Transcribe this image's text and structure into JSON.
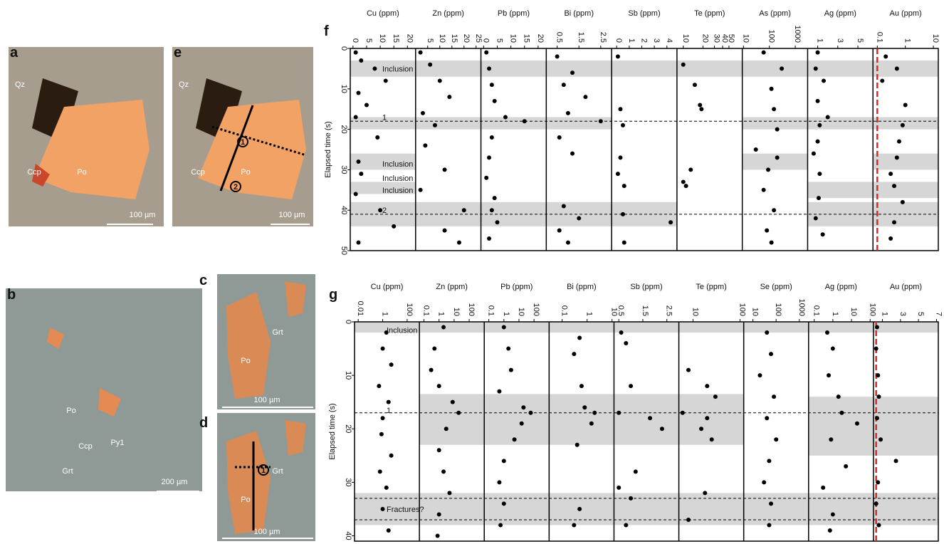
{
  "photos": [
    {
      "label": "a",
      "minerals": [
        "Qz",
        "Ccp",
        "Po"
      ],
      "scale_bar": "100 µm"
    },
    {
      "label": "e",
      "minerals": [
        "Qz",
        "Ccp",
        "Po"
      ],
      "scale_bar": "100 µm",
      "spots": [
        "1",
        "2"
      ]
    },
    {
      "label": "b",
      "minerals": [
        "Po",
        "Ccp",
        "Py1",
        "Grt"
      ],
      "scale_bar": "200 µm"
    },
    {
      "label": "c",
      "minerals": [
        "Grt",
        "Po"
      ],
      "scale_bar": "100 µm"
    },
    {
      "label": "d",
      "minerals": [
        "Grt",
        "Po"
      ],
      "scale_bar": "100 µm",
      "spots": [
        "1"
      ]
    }
  ],
  "chart_data": [
    {
      "type": "strip",
      "label": "f",
      "ylabel": "Elapsed time (s)",
      "ylim": [
        0,
        50
      ],
      "yticks": [
        0,
        10,
        20,
        30,
        40,
        50
      ],
      "au_line": 0.1,
      "bands": [
        {
          "from": 3,
          "to": 7,
          "tracks": [
            0,
            8
          ]
        },
        {
          "from": 17,
          "to": 20,
          "tracks": [
            0,
            3
          ]
        },
        {
          "from": 17,
          "to": 20,
          "tracks": [
            6,
            8
          ]
        },
        {
          "from": 26,
          "to": 30,
          "tracks": [
            0,
            0
          ]
        },
        {
          "from": 26,
          "to": 30,
          "tracks": [
            6,
            6
          ]
        },
        {
          "from": 26,
          "to": 30,
          "tracks": [
            8,
            8
          ]
        },
        {
          "from": 33,
          "to": 36,
          "tracks": [
            0,
            0
          ]
        },
        {
          "from": 33,
          "to": 37,
          "tracks": [
            7,
            8
          ]
        },
        {
          "from": 38,
          "to": 44,
          "tracks": [
            0,
            4
          ]
        },
        {
          "from": 38,
          "to": 44,
          "tracks": [
            7,
            8
          ]
        }
      ],
      "dashed": [
        18,
        41
      ],
      "annotations": [
        {
          "text": "Inclusion",
          "y": 5
        },
        {
          "text": "1",
          "y": 17
        },
        {
          "text": "Inclusion",
          "y": 28.5
        },
        {
          "text": "Inclusion",
          "y": 32
        },
        {
          "text": "Inclusion",
          "y": 35
        },
        {
          "text": "2",
          "y": 40
        }
      ],
      "tracks": [
        {
          "name": "Cu (ppm)",
          "log": false,
          "xlim": [
            -1,
            23
          ],
          "xticks": [
            0,
            5,
            10,
            15,
            20
          ],
          "y": [
            1,
            3,
            5,
            8,
            11,
            14,
            17,
            22,
            28,
            31,
            36,
            40,
            44,
            48
          ],
          "x": [
            1,
            3,
            8,
            12,
            2,
            5,
            1,
            9,
            2,
            3,
            1,
            10,
            15,
            2
          ]
        },
        {
          "name": "Zn (ppm)",
          "log": false,
          "xlim": [
            0,
            27
          ],
          "xticks": [
            5,
            10,
            15,
            20,
            25
          ],
          "y": [
            1,
            4,
            8,
            12,
            16,
            19,
            24,
            30,
            35,
            40,
            45,
            48
          ],
          "x": [
            2,
            6,
            10,
            14,
            3,
            8,
            4,
            12,
            2,
            20,
            12,
            18
          ]
        },
        {
          "name": "Pb (ppm)",
          "log": false,
          "xlim": [
            -1,
            23
          ],
          "xticks": [
            0,
            5,
            10,
            15,
            20
          ],
          "y": [
            1,
            5,
            9,
            13,
            17,
            18,
            22,
            27,
            32,
            37,
            40,
            43,
            47
          ],
          "x": [
            1,
            2,
            3,
            4,
            8,
            15,
            3,
            2,
            1,
            4,
            3,
            5,
            2
          ]
        },
        {
          "name": "Bi (ppm)",
          "log": false,
          "xlim": [
            0,
            3
          ],
          "xticks": [
            0.5,
            1.5,
            2.5
          ],
          "y": [
            2,
            6,
            9,
            12,
            16,
            18,
            22,
            26,
            39,
            42,
            45,
            48
          ],
          "x": [
            0.5,
            1.2,
            0.8,
            1.8,
            1.0,
            2.5,
            0.6,
            1.2,
            0.8,
            1.5,
            0.6,
            1.0
          ]
        },
        {
          "name": "Sb (ppm)",
          "log": false,
          "xlim": [
            -0.4,
            4.8
          ],
          "xticks": [
            0,
            1,
            2,
            3,
            4
          ],
          "y": [
            2,
            15,
            19,
            27,
            31,
            34,
            41,
            43,
            48
          ],
          "x": [
            0.1,
            0.3,
            0.5,
            0.3,
            0.1,
            0.6,
            0.5,
            4.3,
            0.6
          ]
        },
        {
          "name": "Te (ppm)",
          "log": true,
          "xlim": [
            8,
            80
          ],
          "xticks": [
            10,
            20,
            30,
            40,
            50
          ],
          "y": [
            4,
            9,
            14,
            15,
            30,
            33,
            34
          ],
          "x": [
            10,
            15,
            18,
            19,
            13,
            10,
            11
          ]
        },
        {
          "name": "As (ppm)",
          "log": true,
          "xlim": [
            9,
            3000
          ],
          "xticks": [
            10,
            100,
            1000
          ],
          "y": [
            1,
            5,
            10,
            15,
            20,
            25,
            27,
            30,
            35,
            40,
            45,
            48
          ],
          "x": [
            60,
            300,
            120,
            150,
            200,
            30,
            200,
            90,
            60,
            150,
            80,
            120
          ]
        },
        {
          "name": "Ag (ppm)",
          "log": false,
          "xlim": [
            0,
            6.5
          ],
          "xticks": [
            1,
            3,
            5
          ],
          "y": [
            1,
            5,
            8,
            13,
            17,
            19,
            23,
            26,
            31,
            37,
            42,
            46
          ],
          "x": [
            1,
            0.8,
            1.6,
            1,
            2,
            1.2,
            1,
            0.6,
            1.2,
            1.1,
            0.8,
            1.5
          ]
        },
        {
          "name": "Au (ppm)",
          "log": true,
          "xlim": [
            0.07,
            15
          ],
          "xticks": [
            0.1,
            1,
            10
          ],
          "y": [
            2,
            5,
            8,
            14,
            19,
            23,
            27,
            31,
            34,
            38,
            43,
            47
          ],
          "x": [
            0.2,
            0.5,
            0.15,
            1.0,
            0.8,
            0.6,
            0.5,
            0.3,
            0.4,
            0.8,
            0.4,
            0.3
          ]
        }
      ]
    },
    {
      "type": "strip",
      "label": "g",
      "ylabel": "Elapsed time (s)",
      "ylim": [
        0,
        41
      ],
      "yticks": [
        0,
        10,
        20,
        30,
        40
      ],
      "au_line": 0.3,
      "bands": [
        {
          "from": 0,
          "to": 2,
          "tracks": [
            0,
            8
          ]
        },
        {
          "from": 13.5,
          "to": 23,
          "tracks": [
            1,
            5
          ]
        },
        {
          "from": 14,
          "to": 25,
          "tracks": [
            7,
            8
          ]
        },
        {
          "from": 32,
          "to": 38,
          "tracks": [
            0,
            8
          ]
        }
      ],
      "dashed": [
        17,
        33,
        37
      ],
      "annotations": [
        {
          "text": "Inclusion",
          "y": 1.5
        },
        {
          "text": "1",
          "y": 16.5
        },
        {
          "text": "Fractures?",
          "y": 35
        }
      ],
      "tracks": [
        {
          "name": "Cu (ppm)",
          "log": true,
          "xlim": [
            0.005,
            1000
          ],
          "xticks": [
            0.01,
            1,
            100
          ],
          "y": [
            2,
            5,
            8,
            12,
            15,
            18,
            21,
            25,
            28,
            31,
            35,
            39
          ],
          "x": [
            2,
            1,
            5,
            0.5,
            3,
            1,
            0.8,
            5,
            0.6,
            2,
            1,
            3
          ]
        },
        {
          "name": "Zn (ppm)",
          "log": true,
          "xlim": [
            0.05,
            1000
          ],
          "xticks": [
            0.1,
            1,
            10,
            100
          ],
          "y": [
            1,
            5,
            9,
            12,
            15,
            17,
            20,
            24,
            28,
            32,
            36,
            40
          ],
          "x": [
            2,
            0.5,
            0.3,
            1,
            8,
            20,
            3,
            1,
            2,
            5,
            1,
            0.8
          ]
        },
        {
          "name": "Pb (ppm)",
          "log": true,
          "xlim": [
            0.05,
            1000
          ],
          "xticks": [
            0.1,
            1,
            10,
            100
          ],
          "y": [
            1,
            5,
            9,
            13,
            16,
            17,
            19,
            22,
            26,
            30,
            34,
            38
          ],
          "x": [
            1,
            2,
            3,
            0.5,
            20,
            60,
            15,
            5,
            1,
            0.5,
            1,
            0.6
          ]
        },
        {
          "name": "Bi (ppm)",
          "log": true,
          "xlim": [
            0.03,
            12
          ],
          "xticks": [
            0.1,
            1,
            10
          ],
          "y": [
            3,
            6,
            12,
            16,
            17,
            19,
            23,
            35,
            38
          ],
          "x": [
            0.5,
            0.3,
            0.6,
            0.8,
            2,
            1.5,
            0.4,
            0.5,
            0.3
          ]
        },
        {
          "name": "Sb (ppm)",
          "log": false,
          "xlim": [
            0.3,
            3
          ],
          "xticks": [
            0.5,
            1.5,
            2.5
          ],
          "y": [
            2,
            4,
            12,
            17,
            18,
            20,
            28,
            31,
            33,
            38
          ],
          "x": [
            0.6,
            0.8,
            1.0,
            0.5,
            1.8,
            2.3,
            1.2,
            0.5,
            1.0,
            0.8
          ]
        },
        {
          "name": "Te (ppm)",
          "log": true,
          "xlim": [
            5,
            120
          ],
          "xticks": [
            10,
            100
          ],
          "y": [
            9,
            12,
            14,
            17,
            18,
            20,
            22,
            32,
            37
          ],
          "x": [
            8,
            20,
            30,
            6,
            20,
            15,
            25,
            18,
            8
          ]
        },
        {
          "name": "Se (ppm)",
          "log": true,
          "xlim": [
            4,
            2500
          ],
          "xticks": [
            10,
            100,
            1000
          ],
          "y": [
            2,
            6,
            10,
            14,
            18,
            22,
            26,
            30,
            34,
            38
          ],
          "x": [
            40,
            60,
            20,
            80,
            40,
            100,
            50,
            30,
            60,
            50
          ]
        },
        {
          "name": "Ag (ppm)",
          "log": true,
          "xlim": [
            0.05,
            150
          ],
          "xticks": [
            0.1,
            1,
            10,
            100
          ],
          "y": [
            2,
            5,
            10,
            14,
            17,
            19,
            22,
            27,
            31,
            36,
            39
          ],
          "x": [
            0.5,
            1,
            0.6,
            2,
            3,
            20,
            0.8,
            5,
            0.3,
            1,
            0.7
          ]
        },
        {
          "name": "Au (ppm)",
          "log": false,
          "xlim": [
            0,
            7.2
          ],
          "xticks": [
            1,
            3,
            5,
            7
          ],
          "y": [
            1,
            5,
            10,
            14,
            18,
            22,
            26,
            30,
            34,
            38
          ],
          "x": [
            0.4,
            0.3,
            0.5,
            0.6,
            0.4,
            0.8,
            2.5,
            0.5,
            0.3,
            0.6
          ]
        }
      ]
    }
  ]
}
